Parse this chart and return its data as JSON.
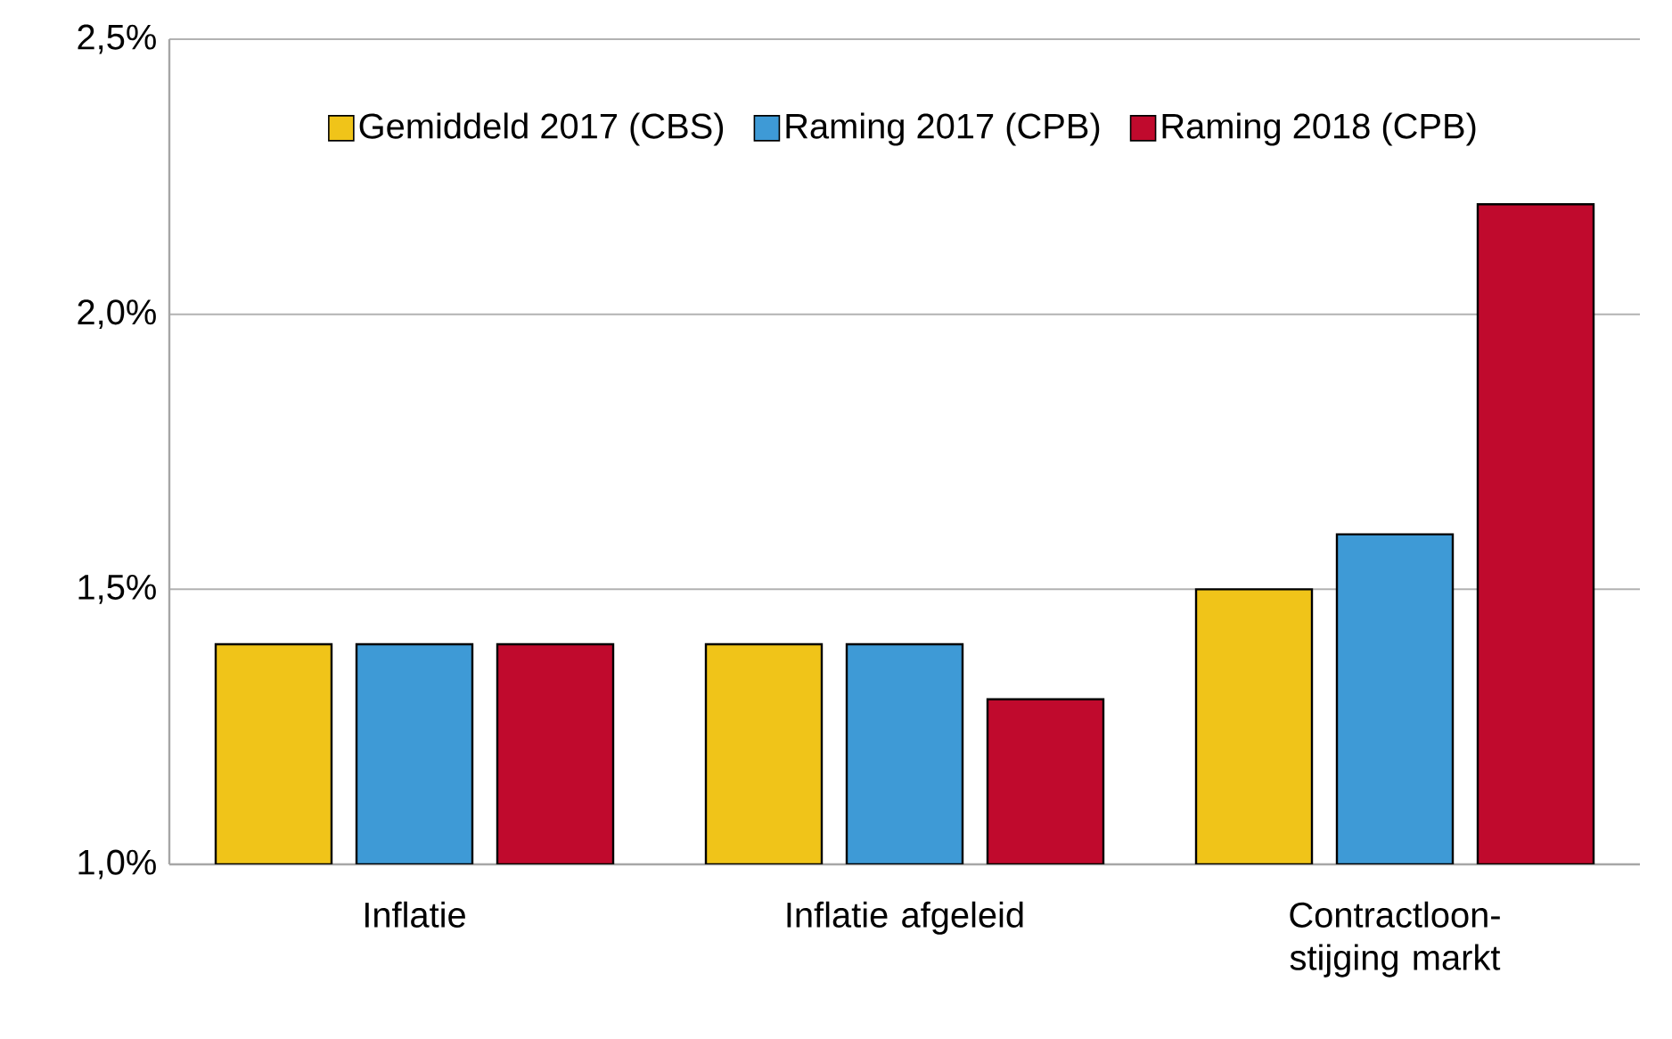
{
  "chart_data": {
    "type": "bar",
    "categories": [
      "Inflatie",
      "Inflatie afgeleid",
      "Contractloon-stijging markt"
    ],
    "series": [
      {
        "name": "Gemiddeld 2017 (CBS)",
        "color": "#f0c419",
        "values": [
          1.4,
          1.4,
          1.5
        ]
      },
      {
        "name": "Raming 2017 (CPB)",
        "color": "#3e9ad6",
        "values": [
          1.4,
          1.4,
          1.6
        ]
      },
      {
        "name": "Raming 2018 (CPB)",
        "color": "#c00a2d",
        "values": [
          1.4,
          1.3,
          2.2
        ]
      }
    ],
    "ylim": [
      1.0,
      2.5
    ],
    "yticks": [
      {
        "value": 1.0,
        "label": "1,0%"
      },
      {
        "value": 1.5,
        "label": "1,5%"
      },
      {
        "value": 2.0,
        "label": "2,0%"
      },
      {
        "value": 2.5,
        "label": "2,5%"
      }
    ],
    "grid": "y",
    "legend": "top"
  }
}
